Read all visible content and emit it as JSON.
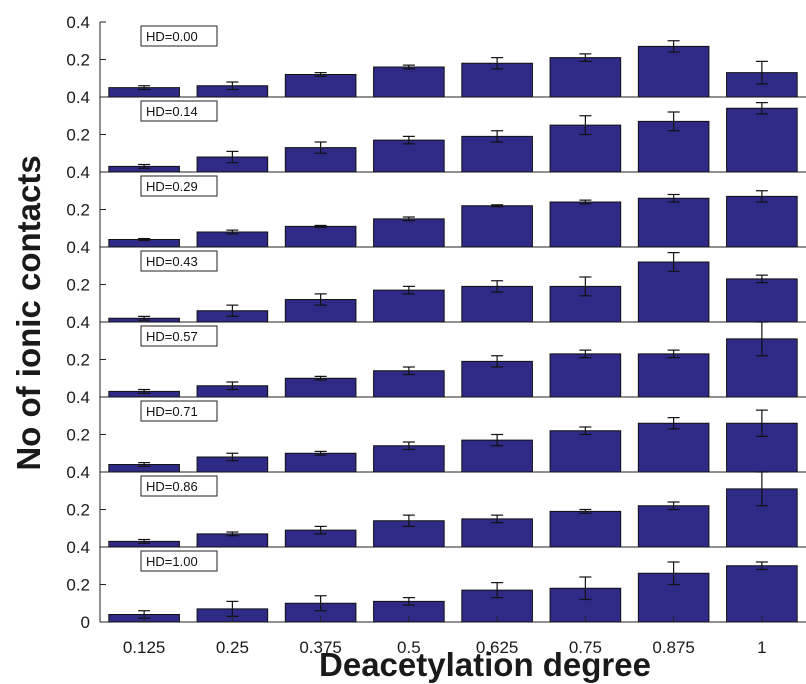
{
  "chart_data": {
    "type": "bar",
    "xlabel": "Deacetylation degree",
    "ylabel": "No of ionic contacts",
    "categories": [
      "0.125",
      "0.25",
      "0.375",
      "0.5",
      "0.625",
      "0.75",
      "0.875",
      "1"
    ],
    "ylim": [
      0,
      0.4
    ],
    "yticks": [
      "0",
      "0.2",
      "0.4"
    ],
    "bar_color": "#2e2a86",
    "panels": [
      {
        "label": "HD=0.00",
        "values": [
          0.05,
          0.06,
          0.12,
          0.16,
          0.18,
          0.21,
          0.27,
          0.13
        ],
        "errors": [
          0.01,
          0.02,
          0.01,
          0.01,
          0.03,
          0.02,
          0.03,
          0.06
        ]
      },
      {
        "label": "HD=0.14",
        "values": [
          0.03,
          0.08,
          0.13,
          0.17,
          0.19,
          0.25,
          0.27,
          0.34
        ],
        "errors": [
          0.01,
          0.03,
          0.03,
          0.02,
          0.03,
          0.05,
          0.05,
          0.03
        ]
      },
      {
        "label": "HD=0.29",
        "values": [
          0.04,
          0.08,
          0.11,
          0.15,
          0.22,
          0.24,
          0.26,
          0.27
        ],
        "errors": [
          0.005,
          0.01,
          0.005,
          0.01,
          0.005,
          0.01,
          0.02,
          0.03
        ]
      },
      {
        "label": "HD=0.43",
        "values": [
          0.02,
          0.06,
          0.12,
          0.17,
          0.19,
          0.19,
          0.32,
          0.23
        ],
        "errors": [
          0.01,
          0.03,
          0.03,
          0.02,
          0.03,
          0.05,
          0.05,
          0.02
        ]
      },
      {
        "label": "HD=0.57",
        "values": [
          0.03,
          0.06,
          0.1,
          0.14,
          0.19,
          0.23,
          0.23,
          0.31
        ],
        "errors": [
          0.01,
          0.02,
          0.01,
          0.02,
          0.03,
          0.02,
          0.02,
          0.09
        ]
      },
      {
        "label": "HD=0.71",
        "values": [
          0.04,
          0.08,
          0.1,
          0.14,
          0.17,
          0.22,
          0.26,
          0.26
        ],
        "errors": [
          0.01,
          0.02,
          0.01,
          0.02,
          0.03,
          0.02,
          0.03,
          0.07
        ]
      },
      {
        "label": "HD=0.86",
        "values": [
          0.03,
          0.07,
          0.09,
          0.14,
          0.15,
          0.19,
          0.22,
          0.31
        ],
        "errors": [
          0.01,
          0.01,
          0.02,
          0.03,
          0.02,
          0.01,
          0.02,
          0.09
        ]
      },
      {
        "label": "HD=1.00",
        "values": [
          0.04,
          0.07,
          0.1,
          0.11,
          0.17,
          0.18,
          0.26,
          0.3
        ],
        "errors": [
          0.02,
          0.04,
          0.04,
          0.02,
          0.04,
          0.06,
          0.06,
          0.02
        ]
      }
    ]
  }
}
